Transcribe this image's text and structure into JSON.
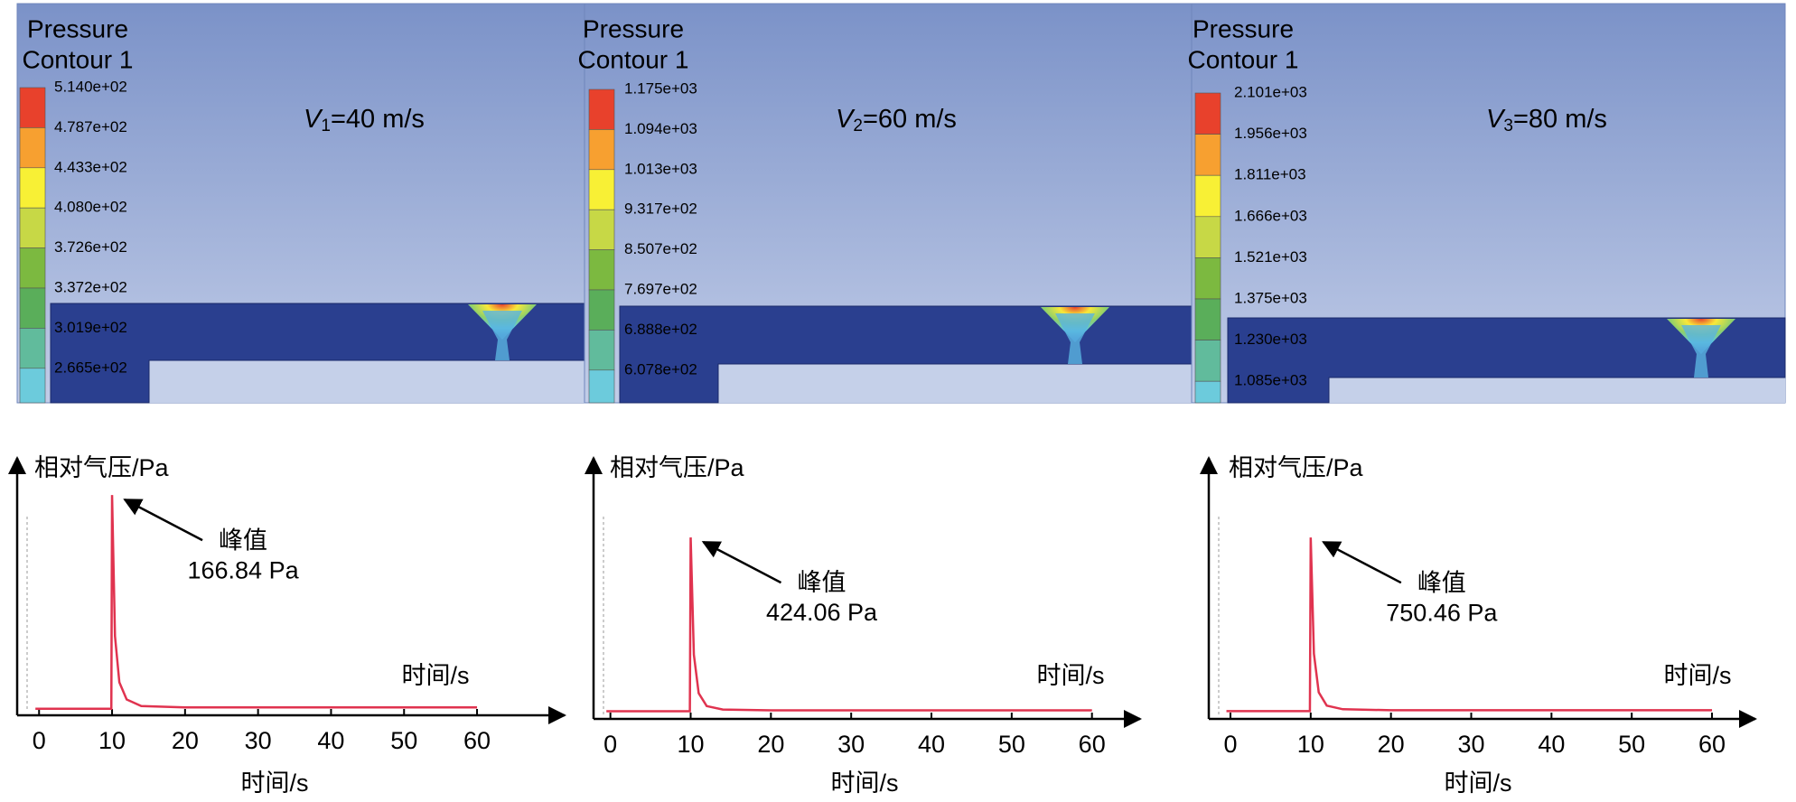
{
  "contours": [
    {
      "title": [
        "Pressure",
        "Contour 1"
      ],
      "levels": [
        "5.140e+02",
        "4.787e+02",
        "4.433e+02",
        "4.080e+02",
        "3.726e+02",
        "3.372e+02",
        "3.019e+02",
        "2.665e+02"
      ],
      "label": {
        "symbol": "V",
        "subscript": "1",
        "text": "=40 m/s"
      }
    },
    {
      "title": [
        "Pressure",
        "Contour 1"
      ],
      "levels": [
        "1.175e+03",
        "1.094e+03",
        "1.013e+03",
        "9.317e+02",
        "8.507e+02",
        "7.697e+02",
        "6.888e+02",
        "6.078e+02"
      ],
      "label": {
        "symbol": "V",
        "subscript": "2",
        "text": "=60 m/s"
      }
    },
    {
      "title": [
        "Pressure",
        "Contour 1"
      ],
      "levels": [
        "2.101e+03",
        "1.956e+03",
        "1.811e+03",
        "1.666e+03",
        "1.521e+03",
        "1.375e+03",
        "1.230e+03",
        "1.085e+03"
      ],
      "label": {
        "symbol": "V",
        "subscript": "3",
        "text": "=80 m/s"
      }
    }
  ],
  "chart_data": [
    {
      "type": "line",
      "y_label": "相对气压/Pa",
      "x_label": "时间/s",
      "x_label_inner": "时间/s",
      "x": [
        -0.5,
        9.9,
        10,
        10.4,
        11,
        12,
        14,
        20,
        60
      ],
      "series": [
        {
          "color": "#e0334f",
          "values": [
            5,
            5,
            166.84,
            60,
            25,
            12,
            7,
            6,
            6
          ]
        }
      ],
      "xlim": [
        -3,
        72
      ],
      "ylim": [
        0,
        195
      ],
      "xticks": [
        0,
        10,
        20,
        30,
        40,
        50,
        60
      ],
      "annotation": {
        "text": "峰值",
        "value_label": "166.84 Pa"
      }
    },
    {
      "type": "line",
      "y_label": "相对气压/Pa",
      "x_label": "时间/s",
      "x_label_inner": "时间/s",
      "x": [
        -0.5,
        9.9,
        10,
        10.4,
        11,
        12,
        14,
        20,
        60
      ],
      "series": [
        {
          "color": "#e0334f",
          "values": [
            18,
            18,
            424.06,
            150,
            60,
            30,
            22,
            20,
            20
          ]
        }
      ],
      "xlim": [
        -2.1,
        66
      ],
      "ylim": [
        0,
        610
      ],
      "xticks": [
        0,
        10,
        20,
        30,
        40,
        50,
        60
      ],
      "annotation": {
        "text": "峰值",
        "value_label": "424.06 Pa"
      }
    },
    {
      "type": "line",
      "y_label": "相对气压/Pa",
      "x_label": "时间/s",
      "x_label_inner": "时间/s",
      "x": [
        -0.5,
        9.9,
        10,
        10.4,
        11,
        12,
        14,
        20,
        60
      ],
      "series": [
        {
          "color": "#e0334f",
          "values": [
            32,
            32,
            750.46,
            270,
            110,
            55,
            40,
            36,
            36
          ]
        }
      ],
      "xlim": [
        -2.7,
        65.4
      ],
      "ylim": [
        0,
        1080
      ],
      "xticks": [
        0,
        10,
        20,
        30,
        40,
        50,
        60
      ],
      "annotation": {
        "text": "峰值",
        "value_label": "750.46 Pa"
      }
    }
  ]
}
